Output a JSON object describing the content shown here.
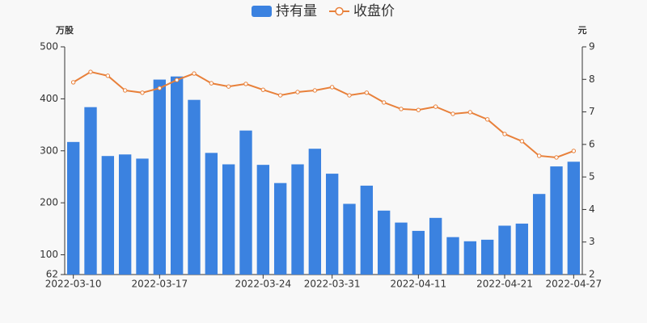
{
  "chart_data": {
    "type": "bar_line",
    "categories": [
      "2022-03-10",
      null,
      null,
      null,
      null,
      "2022-03-17",
      null,
      null,
      null,
      null,
      null,
      "2022-03-24",
      null,
      null,
      null,
      "2022-03-31",
      null,
      null,
      null,
      null,
      "2022-04-11",
      null,
      null,
      null,
      null,
      "2022-04-21",
      null,
      null,
      null,
      "2022-04-27"
    ],
    "series": [
      {
        "name": "持有量",
        "type": "bar",
        "color": "#3b82e0",
        "values": [
          317,
          384,
          290,
          293,
          285,
          437,
          443,
          398,
          296,
          274,
          339,
          273,
          238,
          274,
          304,
          256,
          198,
          233,
          185,
          162,
          146,
          171,
          134,
          126,
          129,
          156,
          160,
          217,
          270,
          279
        ]
      },
      {
        "name": "收盘价",
        "type": "line",
        "axis": "y2",
        "color": "#e8803a",
        "values": [
          7.91,
          8.23,
          8.11,
          7.66,
          7.59,
          7.73,
          7.98,
          8.18,
          7.88,
          7.78,
          7.86,
          7.68,
          7.51,
          7.61,
          7.66,
          7.76,
          7.51,
          7.59,
          7.29,
          7.09,
          7.06,
          7.16,
          6.94,
          6.99,
          6.77,
          6.32,
          6.1,
          5.65,
          5.6,
          5.8
        ]
      }
    ],
    "ylabel": "万股",
    "y2label": "元",
    "ylim": [
      62,
      500
    ],
    "yticks": [
      62,
      100,
      200,
      300,
      400,
      500
    ],
    "y2lim": [
      2,
      9
    ],
    "y2ticks": [
      2,
      3,
      4,
      5,
      6,
      7,
      8,
      9
    ],
    "legend": "top"
  }
}
